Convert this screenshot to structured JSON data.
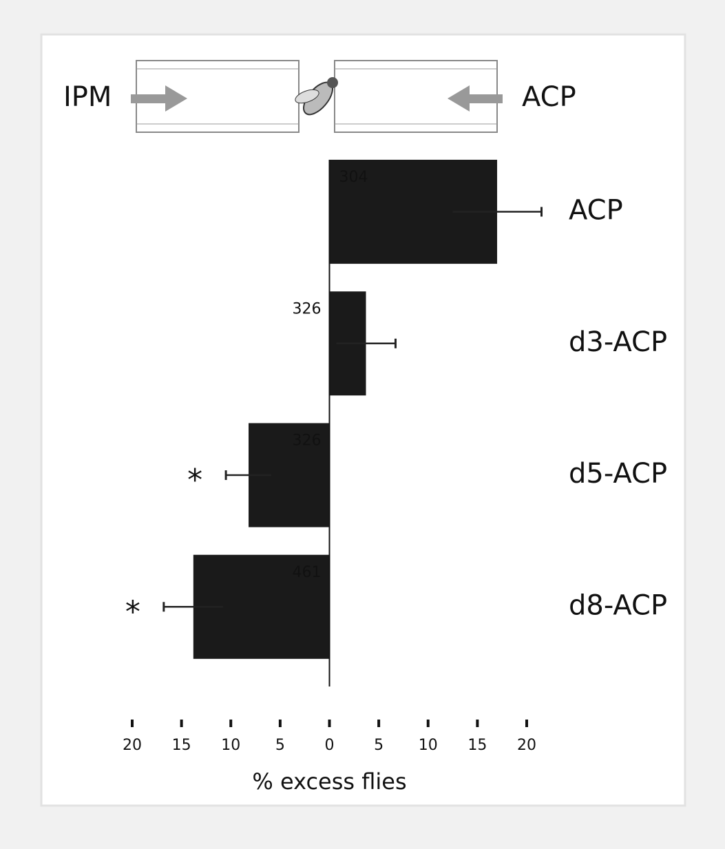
{
  "diagram": {
    "left_label": "IPM",
    "right_label": "ACP"
  },
  "chart_data": {
    "type": "bar",
    "orientation": "horizontal",
    "categories": [
      "ACP",
      "d3-ACP",
      "d5-ACP",
      "d8-ACP"
    ],
    "values": [
      17,
      3.7,
      -8.2,
      -13.8
    ],
    "errors": [
      4.5,
      3,
      2.3,
      3
    ],
    "n": [
      304,
      326,
      326,
      461
    ],
    "significance": [
      null,
      null,
      "*",
      "*"
    ],
    "color": "#1a1a1a",
    "xlabel": "% excess flies",
    "xlim": [
      -20,
      20
    ],
    "xticks": [
      {
        "value": -20,
        "label": "20"
      },
      {
        "value": -15,
        "label": "15"
      },
      {
        "value": -10,
        "label": "10"
      },
      {
        "value": -5,
        "label": "5"
      },
      0,
      5,
      10,
      15,
      20
    ]
  }
}
